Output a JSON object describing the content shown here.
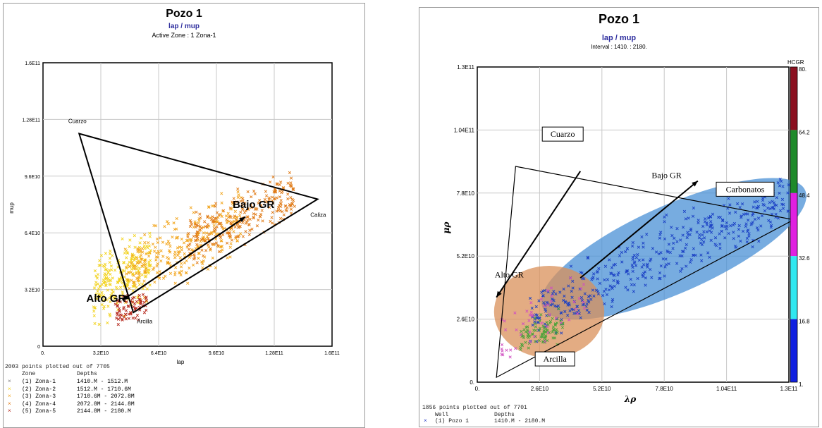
{
  "left": {
    "title": "Pozo 1",
    "subtitle": "lap / mup",
    "subtitle2": "Active Zone : 1 Zona-1",
    "xlabel": "lap",
    "ylabel": "mup",
    "footer_count": "2003 points plotted out of 7705",
    "footer_header_zone": "Zone",
    "footer_header_depths": "Depths",
    "legend_marker": "×",
    "zones": [
      {
        "label": "(1) Zona-1",
        "depths": "1410.M - 1512.M",
        "color": "#7a7a7a"
      },
      {
        "label": "(2) Zona-2",
        "depths": "1512.M - 1710.6M",
        "color": "#f2d21c"
      },
      {
        "label": "(3) Zona-3",
        "depths": "1710.6M - 2072.8M",
        "color": "#f2a51c"
      },
      {
        "label": "(4) Zona-4",
        "depths": "2072.8M - 2144.8M",
        "color": "#e07a16"
      },
      {
        "label": "(5) Zona-5",
        "depths": "2144.8M - 2180.M",
        "color": "#b5271b"
      }
    ],
    "annotations": {
      "cuarzo": "Cuarzo",
      "caliza": "Caliza",
      "arcilla": "Arcilla",
      "bajo_gr": "Bajo GR",
      "alto_gr": "Alto GR"
    }
  },
  "right": {
    "title": "Pozo 1",
    "subtitle": "lap / mup",
    "subtitle2": "Interval : 1410. : 2180.",
    "xlabel": "λρ",
    "ylabel": "μρ",
    "colorbar_title": "HCGR",
    "colorbar_ticks": [
      "80.",
      "64.2",
      "48.4",
      "32.6",
      "16.8",
      "1."
    ],
    "colorbar_colors": [
      "#8b1020",
      "#1e8a2a",
      "#e020e0",
      "#30e8f0",
      "#1020e0"
    ],
    "footer_count": "1856 points plotted out of 7701",
    "footer_header_well": "Well",
    "footer_header_depths": "Depths",
    "legend_marker": "×",
    "legend_well": "(1) Pozo 1",
    "legend_depths": "1410.M - 2180.M",
    "annotations": {
      "cuarzo": "Cuarzo",
      "carbonatos": "Carbonatos",
      "arcilla": "Arcilla",
      "bajo_gr": "Bajo GR",
      "alto_gr": "Alto GR"
    }
  },
  "chart_data": [
    {
      "type": "scatter",
      "title": "Pozo 1",
      "subtitle": "lap / mup",
      "xlabel": "lap",
      "ylabel": "mup",
      "xlim": [
        0,
        160000000000.0
      ],
      "ylim": [
        0,
        160000000000.0
      ],
      "xticks": [
        "0.",
        "3.2E10",
        "6.4E10",
        "9.6E10",
        "1.28E11",
        "1.6E11"
      ],
      "yticks": [
        "0",
        "3.2E10",
        "6.4E10",
        "9.6E10",
        "1.28E11",
        "1.6E11"
      ],
      "grid": true,
      "triangle": [
        [
          20000000000.0,
          120000000000.0
        ],
        [
          152000000000.0,
          83000000000.0
        ],
        [
          50000000000.0,
          19000000000.0
        ]
      ],
      "arrow": {
        "from": [
          112000000000.0,
          73000000000.0
        ],
        "to": [
          44000000000.0,
          26000000000.0
        ]
      },
      "label_positions": {
        "cuarzo": [
          14000000000.0,
          126000000000.0
        ],
        "caliza": [
          148000000000.0,
          73000000000.0
        ],
        "arcilla": [
          52000000000.0,
          13000000000.0
        ],
        "bajo_gr": [
          105000000000.0,
          78000000000.0
        ],
        "alto_gr": [
          24000000000.0,
          25000000000.0
        ]
      },
      "series": [
        {
          "name": "(2) Zona-2",
          "color": "#f2d21c",
          "count": 240,
          "x_range": [
            28000000000.0,
            60000000000.0
          ],
          "slope": 0.5,
          "intercept": 17000000000.0,
          "spread": 9000000000.0
        },
        {
          "name": "(3) Zona-3",
          "color": "#f2a51c",
          "count": 280,
          "x_range": [
            45000000000.0,
            110000000000.0
          ],
          "slope": 0.48,
          "intercept": 19000000000.0,
          "spread": 8500000000.0
        },
        {
          "name": "(4) Zona-4",
          "color": "#e07a16",
          "count": 260,
          "x_range": [
            80000000000.0,
            140000000000.0
          ],
          "slope": 0.46,
          "intercept": 21000000000.0,
          "spread": 7000000000.0
        },
        {
          "name": "(5) Zona-5",
          "color": "#b5271b",
          "count": 70,
          "x_range": [
            40000000000.0,
            58000000000.0
          ],
          "slope": 0.4,
          "intercept": 2000000000.0,
          "spread": 4000000000.0
        }
      ]
    },
    {
      "type": "scatter",
      "title": "Pozo 1",
      "subtitle": "lap / mup",
      "xlabel": "λρ",
      "ylabel": "μρ",
      "xlim": [
        0,
        130000000000.0
      ],
      "ylim": [
        0,
        130000000000.0
      ],
      "xticks": [
        "0.",
        "2.6E10",
        "5.2E10",
        "7.8E10",
        "1.04E11",
        "1.3E11"
      ],
      "yticks": [
        "0.",
        "2.6E10",
        "5.2E10",
        "7.8E10",
        "1.04E11",
        "1.3E11"
      ],
      "grid": true,
      "ellipses": [
        {
          "name": "carbonatos",
          "color": "#4a90d6",
          "cx": 82000000000.0,
          "cy": 55000000000.0,
          "rx": 60000000000.0,
          "ry": 18000000000.0,
          "angle": -24
        },
        {
          "name": "arcilla",
          "color": "#d9905a",
          "cx": 30000000000.0,
          "cy": 29000000000.0,
          "rx": 23000000000.0,
          "ry": 19000000000.0,
          "angle": 0
        }
      ],
      "triangle": [
        [
          16000000000.0,
          89000000000.0
        ],
        [
          132000000000.0,
          67000000000.0
        ],
        [
          8000000000.0,
          2000000000.0
        ]
      ],
      "arrow": {
        "from": [
          43000000000.0,
          87000000000.0
        ],
        "to": [
          8000000000.0,
          35000000000.0
        ]
      },
      "arrow2": {
        "from": [
          43000000000.0,
          43000000000.0
        ],
        "to": [
          92000000000.0,
          83000000000.0
        ]
      },
      "label_positions": {
        "cuarzo": [
          13000000000.0,
          100000000000.0
        ],
        "carbonatos": [
          125000000000.0,
          79000000000.0
        ],
        "arcilla": [
          13000000000.0,
          9000000000.0
        ],
        "bajo_gr": [
          71000000000.0,
          86000000000.0
        ],
        "alto_gr": [
          2000000000.0,
          45000000000.0
        ]
      },
      "series": [
        {
          "name": "(1) Pozo 1",
          "color": "#1a3fc4",
          "count": 430,
          "x_range": [
            22000000000.0,
            130000000000.0
          ],
          "slope": 0.46,
          "intercept": 17000000000.0,
          "spread": 6000000000.0
        },
        {
          "name": "(1) Pozo 1",
          "color": "#4aa23a",
          "count": 90,
          "x_range": [
            18000000000.0,
            36000000000.0
          ],
          "slope": 0.4,
          "intercept": 10000000000.0,
          "spread": 3000000000.0
        },
        {
          "name": "(1) Pozo 1",
          "color": "#d050c0",
          "count": 50,
          "x_range": [
            10000000000.0,
            45000000000.0
          ],
          "slope": 0.5,
          "intercept": 14000000000.0,
          "spread": 6000000000.0
        }
      ]
    }
  ]
}
